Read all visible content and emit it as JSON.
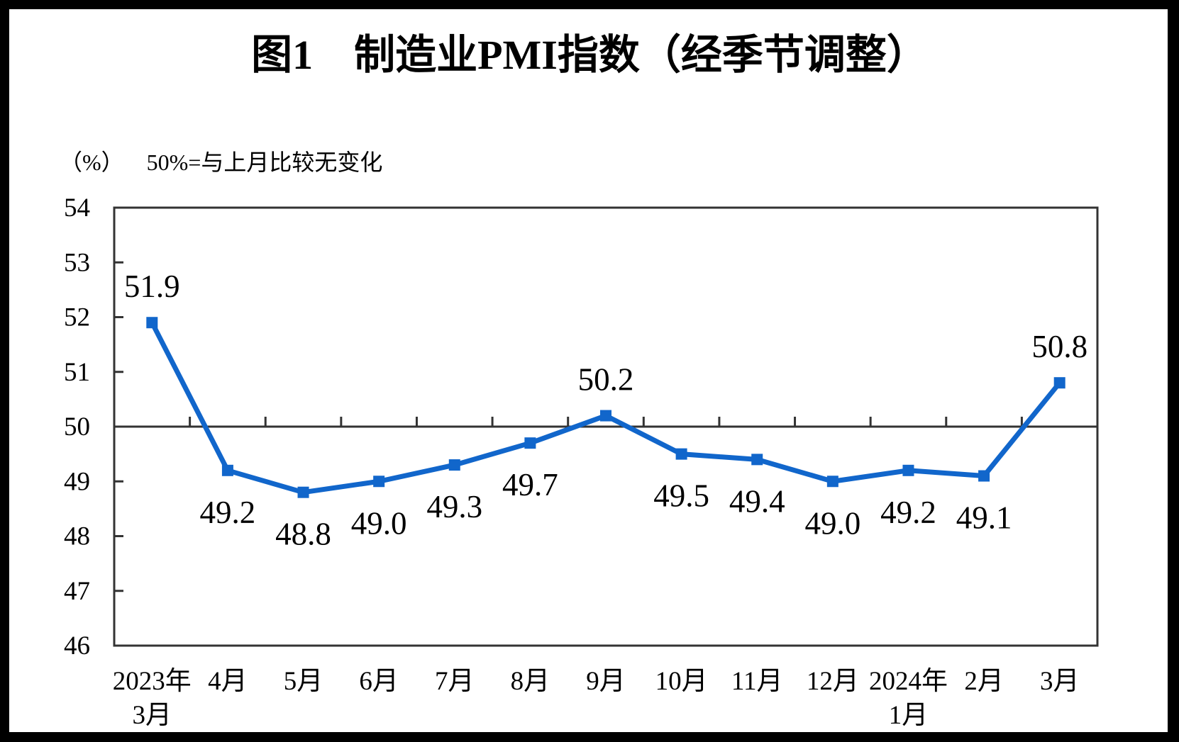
{
  "figure": {
    "title": "图1　制造业PMI指数（经季节调整）",
    "unit_label": "（%）",
    "note": "50%=与上月比较无变化"
  },
  "chart_data": {
    "type": "line",
    "title": "图1　制造业PMI指数（经季节调整）",
    "unit": "（%）",
    "annotation": "50%=与上月比较无变化",
    "categories": [
      [
        "2023年",
        "3月"
      ],
      [
        "4月"
      ],
      [
        "5月"
      ],
      [
        "6月"
      ],
      [
        "7月"
      ],
      [
        "8月"
      ],
      [
        "9月"
      ],
      [
        "10月"
      ],
      [
        "11月"
      ],
      [
        "12月"
      ],
      [
        "2024年",
        "1月"
      ],
      [
        "2月"
      ],
      [
        "3月"
      ]
    ],
    "values": [
      51.9,
      49.2,
      48.8,
      49.0,
      49.3,
      49.7,
      50.2,
      49.5,
      49.4,
      49.0,
      49.2,
      49.1,
      50.8
    ],
    "data_labels": [
      "51.9",
      "49.2",
      "48.8",
      "49.0",
      "49.3",
      "49.7",
      "50.2",
      "49.5",
      "49.4",
      "49.0",
      "49.2",
      "49.1",
      "50.8"
    ],
    "label_positions": [
      "above",
      "below",
      "below",
      "below",
      "below",
      "below",
      "above",
      "below",
      "below",
      "below",
      "below",
      "below",
      "above"
    ],
    "ylim": [
      46,
      54
    ],
    "yticks": [
      46,
      47,
      48,
      49,
      50,
      51,
      52,
      53,
      54
    ],
    "reference_line": 50,
    "grid": false,
    "legend": "none",
    "marker": "square",
    "colors": {
      "line": "#1166cb",
      "marker": "#1166cb",
      "axis": "#333333",
      "text": "#000000",
      "background": "#ffffff",
      "frame": "#000000"
    }
  }
}
